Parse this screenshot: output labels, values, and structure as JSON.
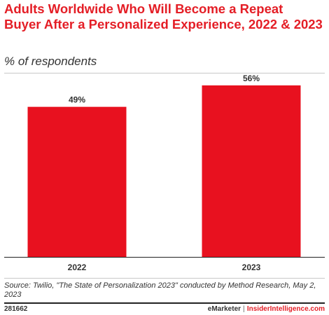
{
  "header": {
    "title": "Adults Worldwide Who Will Become a Repeat Buyer After a Personalized Experience, 2022 & 2023",
    "subtitle": "% of respondents"
  },
  "chart_data": {
    "type": "bar",
    "categories": [
      "2022",
      "2023"
    ],
    "values": [
      49,
      56
    ],
    "value_labels": [
      "49%",
      "56%"
    ],
    "xlabel": "",
    "ylabel": "",
    "ylim": [
      0,
      60
    ],
    "grid": false,
    "legend": "none",
    "bar_color": "#e8111f"
  },
  "footer": {
    "source": "Source: Twilio, \"The State of Personalization 2023\" conducted by Method Research, May 2, 2023",
    "chart_id": "281662",
    "brand": "eMarketer",
    "separator": "|",
    "site": "InsiderIntelligence.com"
  },
  "colors": {
    "title": "#e41e26",
    "bar": "#e8111f",
    "text": "#333333"
  }
}
